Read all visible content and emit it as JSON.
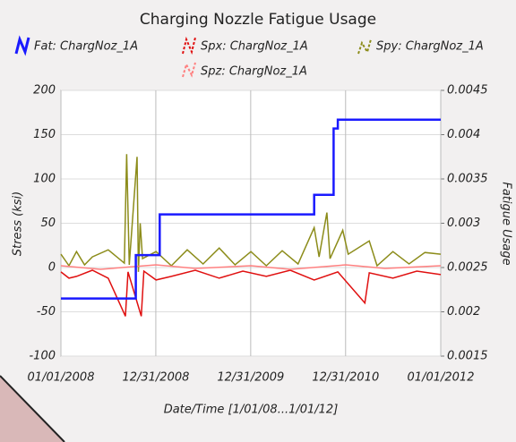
{
  "chart_data": {
    "type": "line",
    "title": "Charging Nozzle Fatigue Usage",
    "xlabel": "Date/Time [1/01/08...1/01/12]",
    "ylabel": "Stress (ksi)",
    "y2label": "Fatigue Usage",
    "xlim": [
      "2008-01-01",
      "2012-01-01"
    ],
    "xticks": [
      {
        "value": "2008-01-01",
        "label": "01/01/2008"
      },
      {
        "value": "2008-12-31",
        "label": "12/31/2008"
      },
      {
        "value": "2009-12-31",
        "label": "12/31/2009"
      },
      {
        "value": "2010-12-31",
        "label": "12/31/2010"
      },
      {
        "value": "2012-01-01",
        "label": "01/01/2012"
      }
    ],
    "ylim": [
      -100,
      200
    ],
    "yticks": [
      200,
      150,
      100,
      50,
      0,
      -50,
      -100
    ],
    "y2lim": [
      0.0015,
      0.0045
    ],
    "y2ticks": [
      0.0045,
      0.004,
      0.0035,
      0.003,
      0.0025,
      0.002,
      0.0015
    ],
    "grid": true,
    "series": [
      {
        "name": "Fat: ChargNoz_1A",
        "color": "#1a1aff",
        "axis": "y2",
        "x": [
          "2008-01-01",
          "2008-10-15",
          "2008-10-15",
          "2009-01-15",
          "2009-01-15",
          "2010-09-01",
          "2010-09-01",
          "2010-11-15",
          "2010-11-15",
          "2010-12-01",
          "2010-12-01",
          "2012-01-01"
        ],
        "values": [
          0.00215,
          0.00215,
          0.00264,
          0.00264,
          0.0031,
          0.0031,
          0.00332,
          0.00332,
          0.00407,
          0.00407,
          0.00417,
          0.00417
        ]
      },
      {
        "name": "Spx: ChargNoz_1A",
        "color": "#e01010",
        "x": [
          "2008-01-01",
          "2008-02-01",
          "2008-03-01",
          "2008-05-01",
          "2008-07-01",
          "2008-09-05",
          "2008-09-15",
          "2008-11-05",
          "2008-11-15",
          "2009-01-01",
          "2009-03-01",
          "2009-06-01",
          "2009-09-01",
          "2009-12-01",
          "2010-03-01",
          "2010-06-01",
          "2010-09-01",
          "2010-12-01",
          "2011-03-15",
          "2011-04-01",
          "2011-07-01",
          "2011-10-01",
          "2012-01-01"
        ],
        "values": [
          -5,
          -12,
          -10,
          -3,
          -12,
          -55,
          -5,
          -55,
          -4,
          -14,
          -10,
          -3,
          -12,
          -4,
          -10,
          -3,
          -14,
          -5,
          -40,
          -6,
          -12,
          -4,
          -8
        ]
      },
      {
        "name": "Spy: ChargNoz_1A",
        "color": "#8c8c1a",
        "x": [
          "2008-01-01",
          "2008-02-01",
          "2008-03-01",
          "2008-04-01",
          "2008-05-01",
          "2008-07-01",
          "2008-09-01",
          "2008-09-10",
          "2008-09-20",
          "2008-10-20",
          "2008-10-25",
          "2008-11-01",
          "2008-11-10",
          "2009-01-01",
          "2009-03-01",
          "2009-05-01",
          "2009-07-01",
          "2009-09-01",
          "2009-11-01",
          "2010-01-01",
          "2010-03-01",
          "2010-05-01",
          "2010-07-01",
          "2010-09-01",
          "2010-09-20",
          "2010-10-20",
          "2010-11-01",
          "2010-12-20",
          "2011-01-10",
          "2011-04-01",
          "2011-05-01",
          "2011-07-01",
          "2011-09-01",
          "2011-11-01",
          "2012-01-01"
        ],
        "values": [
          15,
          2,
          18,
          3,
          12,
          20,
          5,
          128,
          3,
          125,
          -5,
          50,
          10,
          18,
          2,
          20,
          4,
          22,
          3,
          18,
          2,
          19,
          4,
          45,
          12,
          62,
          10,
          42,
          15,
          30,
          2,
          18,
          4,
          17,
          15
        ]
      },
      {
        "name": "Spz: ChargNoz_1A",
        "color": "#ff8080",
        "x": [
          "2008-01-01",
          "2008-06-01",
          "2009-01-01",
          "2009-06-01",
          "2010-01-01",
          "2010-06-01",
          "2011-01-01",
          "2011-06-01",
          "2012-01-01"
        ],
        "values": [
          2,
          -2,
          3,
          -1,
          2,
          -2,
          3,
          -1,
          2
        ]
      }
    ]
  }
}
